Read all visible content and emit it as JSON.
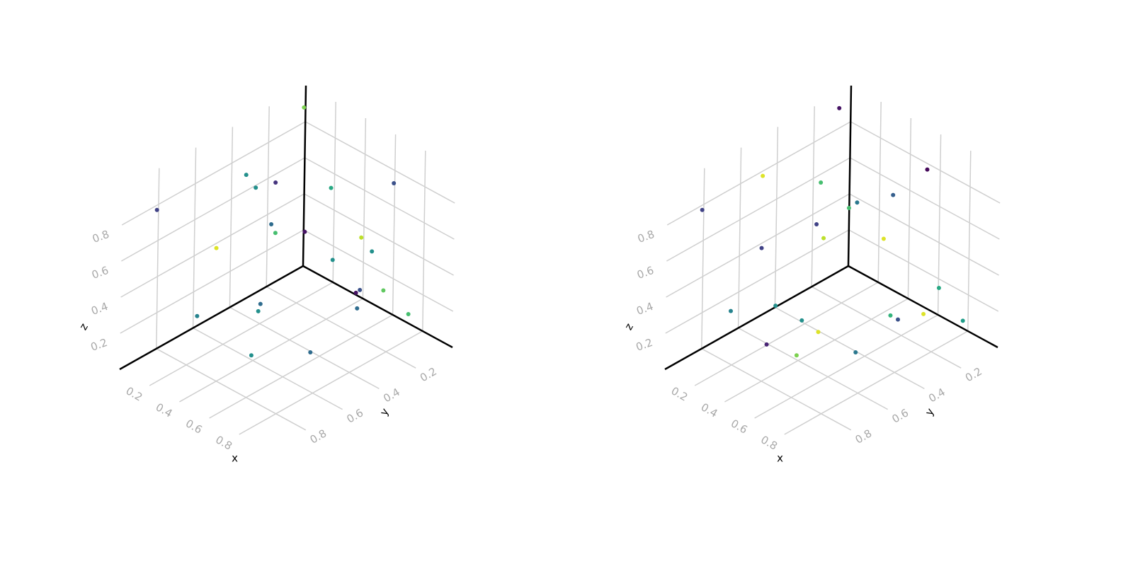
{
  "chart_data": [
    {
      "type": "scatter",
      "projection": "3d",
      "xlabel": "x",
      "ylabel": "y",
      "zlabel": "z",
      "xlim": [
        0,
        1
      ],
      "ylim": [
        0,
        1
      ],
      "zlim": [
        0,
        1
      ],
      "xticks": [
        "0.2",
        "0.4",
        "0.6",
        "0.8"
      ],
      "yticks": [
        "0.2",
        "0.4",
        "0.6",
        "0.8"
      ],
      "zticks": [
        "0.2",
        "0.4",
        "0.6",
        "0.8"
      ],
      "grid": true,
      "colormap": "viridis",
      "points": [
        {
          "x": 0.05,
          "y": 0.05,
          "z": 0.93,
          "c": 0.8
        },
        {
          "x": 0.25,
          "y": 0.06,
          "z": 0.58,
          "c": 0.6
        },
        {
          "x": 0.48,
          "y": 0.08,
          "z": 0.42,
          "c": 0.9
        },
        {
          "x": 0.63,
          "y": 0.03,
          "z": 0.76,
          "c": 0.25
        },
        {
          "x": 0.08,
          "y": 0.06,
          "z": 0.26,
          "c": 0.05
        },
        {
          "x": 0.28,
          "y": 0.07,
          "z": 0.2,
          "c": 0.5
        },
        {
          "x": 0.6,
          "y": 0.12,
          "z": 0.42,
          "c": 0.5
        },
        {
          "x": 0.68,
          "y": 0.12,
          "z": 0.24,
          "c": 0.75
        },
        {
          "x": 0.8,
          "y": 0.08,
          "z": 0.14,
          "c": 0.7
        },
        {
          "x": 0.5,
          "y": 0.1,
          "z": 0.15,
          "c": 0.25
        },
        {
          "x": 0.58,
          "y": 0.18,
          "z": 0.13,
          "c": 0.35
        },
        {
          "x": 0.45,
          "y": 0.08,
          "z": 0.1,
          "c": 0.05
        },
        {
          "x": 0.6,
          "y": 0.45,
          "z": 0.05,
          "c": 0.35
        },
        {
          "x": 0.12,
          "y": 0.42,
          "z": 0.8,
          "c": 0.5
        },
        {
          "x": 0.1,
          "y": 0.35,
          "z": 0.68,
          "c": 0.5
        },
        {
          "x": 0.05,
          "y": 0.2,
          "z": 0.6,
          "c": 0.15
        },
        {
          "x": 0.05,
          "y": 0.22,
          "z": 0.38,
          "c": 0.35
        },
        {
          "x": 0.03,
          "y": 0.18,
          "z": 0.3,
          "c": 0.7
        },
        {
          "x": 0.05,
          "y": 0.85,
          "z": 0.82,
          "c": 0.2
        },
        {
          "x": 0.05,
          "y": 0.52,
          "z": 0.42,
          "c": 0.95
        },
        {
          "x": 0.05,
          "y": 0.62,
          "z": 0.1,
          "c": 0.45
        },
        {
          "x": 0.25,
          "y": 0.45,
          "z": 0.12,
          "c": 0.5
        },
        {
          "x": 0.3,
          "y": 0.48,
          "z": 0.2,
          "c": 0.35
        },
        {
          "x": 0.45,
          "y": 0.65,
          "z": 0.08,
          "c": 0.5
        }
      ]
    },
    {
      "type": "scatter",
      "projection": "3d",
      "xlabel": "x",
      "ylabel": "y",
      "zlabel": "z",
      "xlim": [
        0,
        1
      ],
      "ylim": [
        0,
        1
      ],
      "zlim": [
        0,
        1
      ],
      "xticks": [
        "0.2",
        "0.4",
        "0.6",
        "0.8"
      ],
      "yticks": [
        "0.2",
        "0.4",
        "0.6",
        "0.8"
      ],
      "zticks": [
        "0.2",
        "0.4",
        "0.6",
        "0.8"
      ],
      "grid": true,
      "colormap": "viridis",
      "points": [
        {
          "x": 0.02,
          "y": 0.08,
          "z": 0.93,
          "c": 0.05
        },
        {
          "x": 0.55,
          "y": 0.03,
          "z": 0.8,
          "c": 0.02
        },
        {
          "x": 0.35,
          "y": 0.05,
          "z": 0.58,
          "c": 0.3
        },
        {
          "x": 0.1,
          "y": 0.04,
          "z": 0.42,
          "c": 0.4
        },
        {
          "x": 0.28,
          "y": 0.04,
          "z": 0.3,
          "c": 0.95
        },
        {
          "x": 0.7,
          "y": 0.08,
          "z": 0.24,
          "c": 0.6
        },
        {
          "x": 0.85,
          "y": 0.07,
          "z": 0.12,
          "c": 0.55
        },
        {
          "x": 0.6,
          "y": 0.08,
          "z": 0.05,
          "c": 0.95
        },
        {
          "x": 0.05,
          "y": 0.2,
          "z": 0.6,
          "c": 0.7
        },
        {
          "x": 0.05,
          "y": 0.22,
          "z": 0.38,
          "c": 0.2
        },
        {
          "x": 0.05,
          "y": 0.18,
          "z": 0.28,
          "c": 0.9
        },
        {
          "x": 0.05,
          "y": 0.85,
          "z": 0.82,
          "c": 0.2
        },
        {
          "x": 0.05,
          "y": 0.52,
          "z": 0.82,
          "c": 0.95
        },
        {
          "x": 0.05,
          "y": 0.52,
          "z": 0.42,
          "c": 0.2
        },
        {
          "x": 0.1,
          "y": 0.48,
          "z": 0.1,
          "c": 0.5
        },
        {
          "x": 0.3,
          "y": 0.5,
          "z": 0.12,
          "c": 0.5
        },
        {
          "x": 0.55,
          "y": 0.22,
          "z": 0.1,
          "c": 0.65
        },
        {
          "x": 0.6,
          "y": 0.22,
          "z": 0.1,
          "c": 0.25
        },
        {
          "x": 0.35,
          "y": 0.45,
          "z": 0.05,
          "c": 0.95
        },
        {
          "x": 0.25,
          "y": 0.65,
          "z": 0.05,
          "c": 0.1
        },
        {
          "x": 0.6,
          "y": 0.45,
          "z": 0.05,
          "c": 0.4
        },
        {
          "x": 0.45,
          "y": 0.65,
          "z": 0.08,
          "c": 0.8
        },
        {
          "x": 0.25,
          "y": 0.85,
          "z": 0.35,
          "c": 0.45
        },
        {
          "x": 0.3,
          "y": 0.25,
          "z": 0.6,
          "c": 0.7
        }
      ]
    }
  ]
}
